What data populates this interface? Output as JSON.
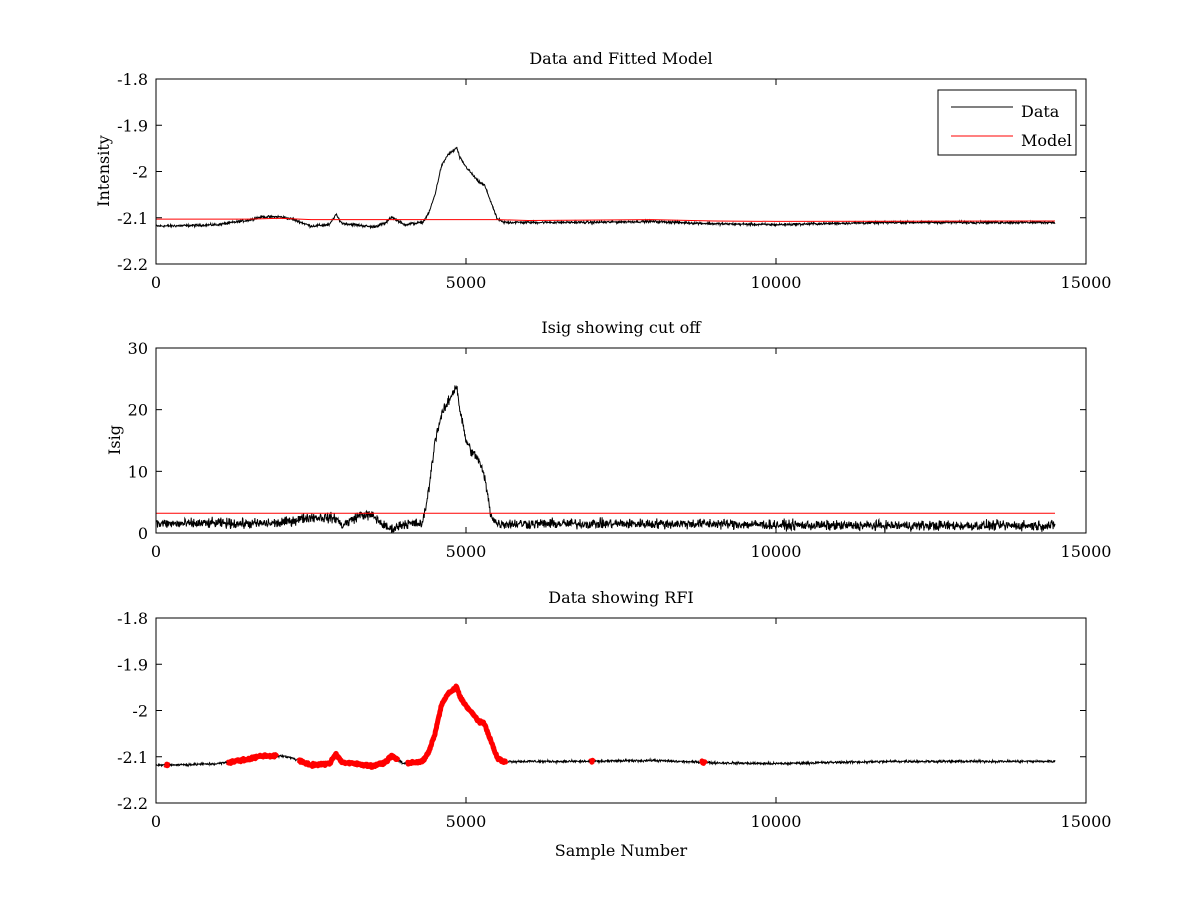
{
  "figure": {
    "background": "#ffffff"
  },
  "chart_data": [
    {
      "type": "line",
      "title": "Data and Fitted Model",
      "xlabel": "",
      "ylabel": "Intensity",
      "xlim": [
        0,
        15000
      ],
      "ylim": [
        -2.2,
        -1.8
      ],
      "xticks": [
        0,
        5000,
        10000,
        15000
      ],
      "xtick_labels": [
        "0",
        "5000",
        "10000",
        "15000"
      ],
      "yticks": [
        -1.8,
        -1.9,
        -2.0,
        -2.1,
        -2.2
      ],
      "ytick_labels": [
        "-1.8",
        "-1.9",
        "-2",
        "-2.1",
        "-2.2"
      ],
      "legend": {
        "position": "top-right",
        "entries": [
          {
            "label": "Data",
            "color": "#000000"
          },
          {
            "label": "Model",
            "color": "#ff0000"
          }
        ]
      },
      "series": [
        {
          "name": "Data",
          "color": "#000000",
          "noise": 0.004,
          "x": [
            0,
            500,
            1000,
            1500,
            1700,
            2000,
            2200,
            2500,
            2800,
            2900,
            3000,
            3200,
            3500,
            3700,
            3800,
            4000,
            4300,
            4400,
            4500,
            4600,
            4700,
            4800,
            4850,
            4900,
            5000,
            5200,
            5300,
            5400,
            5500,
            5600,
            6000,
            7000,
            8000,
            9000,
            10000,
            11000,
            12000,
            13000,
            14000,
            14500
          ],
          "y": [
            -2.118,
            -2.117,
            -2.115,
            -2.105,
            -2.098,
            -2.098,
            -2.103,
            -2.118,
            -2.115,
            -2.093,
            -2.112,
            -2.115,
            -2.12,
            -2.112,
            -2.098,
            -2.115,
            -2.11,
            -2.09,
            -2.05,
            -1.99,
            -1.965,
            -1.955,
            -1.948,
            -1.97,
            -1.99,
            -2.022,
            -2.03,
            -2.065,
            -2.102,
            -2.11,
            -2.11,
            -2.11,
            -2.108,
            -2.113,
            -2.115,
            -2.112,
            -2.11,
            -2.11,
            -2.11,
            -2.11
          ]
        },
        {
          "name": "Model",
          "color": "#ff0000",
          "noise": 0,
          "x": [
            0,
            1500,
            2000,
            2500,
            5500,
            6000,
            8000,
            9000,
            10000,
            14500
          ],
          "y": [
            -2.103,
            -2.103,
            -2.101,
            -2.104,
            -2.104,
            -2.106,
            -2.104,
            -2.107,
            -2.108,
            -2.107
          ]
        }
      ]
    },
    {
      "type": "line",
      "title": "Isig showing cut off",
      "xlabel": "",
      "ylabel": "Isig",
      "xlim": [
        0,
        15000
      ],
      "ylim": [
        0,
        30
      ],
      "xticks": [
        0,
        5000,
        10000,
        15000
      ],
      "xtick_labels": [
        "0",
        "5000",
        "10000",
        "15000"
      ],
      "yticks": [
        0,
        10,
        20,
        30
      ],
      "ytick_labels": [
        "0",
        "10",
        "20",
        "30"
      ],
      "series": [
        {
          "name": "Isig",
          "color": "#000000",
          "noise": 1.2,
          "x": [
            0,
            500,
            1000,
            1500,
            2000,
            2500,
            2900,
            3000,
            3300,
            3500,
            3700,
            3800,
            4000,
            4300,
            4400,
            4500,
            4600,
            4700,
            4800,
            4850,
            4900,
            5000,
            5100,
            5200,
            5300,
            5400,
            5500,
            6000,
            7000,
            8000,
            9000,
            10000,
            11000,
            12000,
            13000,
            14000,
            14500
          ],
          "y": [
            1.5,
            1.5,
            1.6,
            1.5,
            1.6,
            2.6,
            2.4,
            1.2,
            3.0,
            2.8,
            1.0,
            0.6,
            1.5,
            1.5,
            7.0,
            15.0,
            19.0,
            21.0,
            23.0,
            24.0,
            20.0,
            15.0,
            13.0,
            12.0,
            9.0,
            3.0,
            1.5,
            1.5,
            1.5,
            1.5,
            1.5,
            1.3,
            1.2,
            1.2,
            1.2,
            1.2,
            1.2
          ]
        },
        {
          "name": "Cutoff",
          "color": "#ff0000",
          "noise": 0,
          "x": [
            0,
            14500
          ],
          "y": [
            3.2,
            3.2
          ]
        }
      ]
    },
    {
      "type": "line",
      "title": "Data showing RFI",
      "xlabel": "Sample Number",
      "ylabel": "",
      "xlim": [
        0,
        15000
      ],
      "ylim": [
        -2.2,
        -1.8
      ],
      "xticks": [
        0,
        5000,
        10000,
        15000
      ],
      "xtick_labels": [
        "0",
        "5000",
        "10000",
        "15000"
      ],
      "yticks": [
        -1.8,
        -1.9,
        -2.0,
        -2.1,
        -2.2
      ],
      "ytick_labels": [
        "-1.8",
        "-1.9",
        "-2",
        "-2.1",
        "-2.2"
      ],
      "series": [
        {
          "name": "Data",
          "color": "#000000",
          "noise": 0.004,
          "x": [
            0,
            500,
            1000,
            1500,
            1700,
            2000,
            2200,
            2500,
            2800,
            2900,
            3000,
            3200,
            3500,
            3700,
            3800,
            4000,
            4300,
            4400,
            4500,
            4600,
            4700,
            4800,
            4850,
            4900,
            5000,
            5200,
            5300,
            5400,
            5500,
            5600,
            6000,
            7000,
            8000,
            9000,
            10000,
            11000,
            12000,
            13000,
            14000,
            14500
          ],
          "y": [
            -2.118,
            -2.117,
            -2.115,
            -2.105,
            -2.098,
            -2.098,
            -2.103,
            -2.118,
            -2.115,
            -2.093,
            -2.112,
            -2.115,
            -2.12,
            -2.112,
            -2.098,
            -2.115,
            -2.11,
            -2.09,
            -2.05,
            -1.99,
            -1.965,
            -1.955,
            -1.948,
            -1.97,
            -1.99,
            -2.022,
            -2.03,
            -2.065,
            -2.102,
            -2.11,
            -2.11,
            -2.11,
            -2.108,
            -2.113,
            -2.115,
            -2.112,
            -2.11,
            -2.11,
            -2.11,
            -2.11
          ]
        },
        {
          "name": "RFI flagged",
          "color": "#ff0000",
          "ranges": [
            [
              150,
              200
            ],
            [
              1150,
              1950
            ],
            [
              2300,
              3900
            ],
            [
              4050,
              5650
            ],
            [
              7000,
              7060
            ],
            [
              8800,
              8860
            ]
          ]
        }
      ]
    }
  ]
}
